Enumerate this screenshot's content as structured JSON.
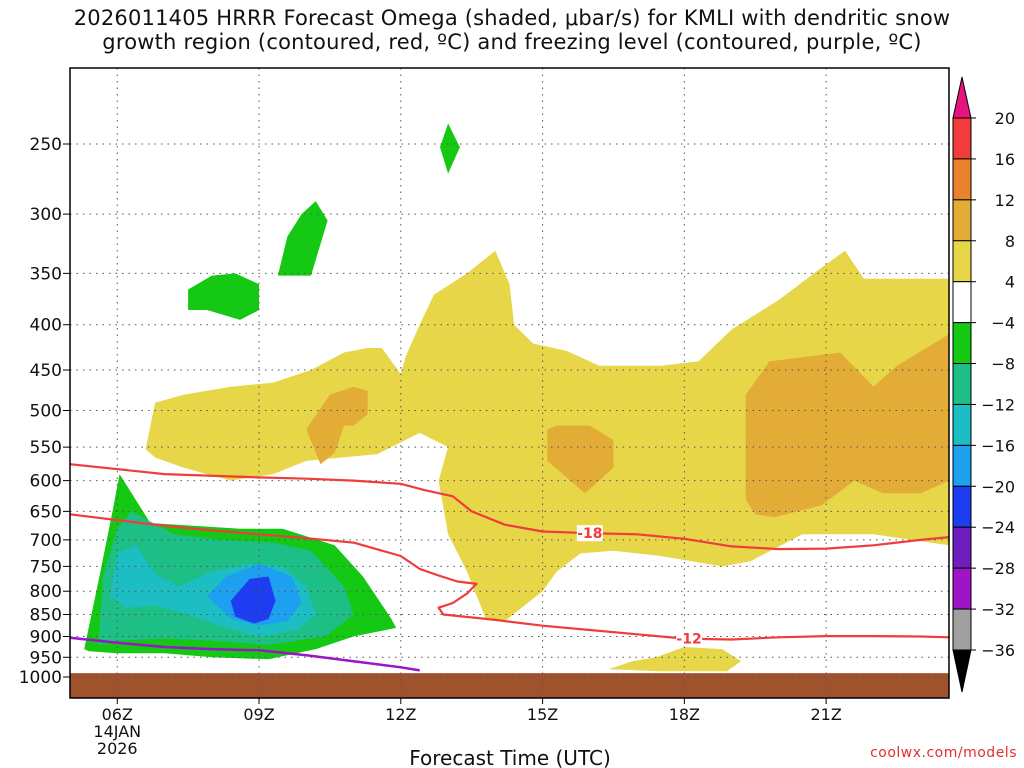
{
  "title": {
    "line1": "2026011405 HRRR Forecast Omega (shaded, μbar/s) for KMLI with dendritic snow",
    "line2": "growth region (contoured, red, ºC) and freezing level (contoured, purple, ºC)"
  },
  "chart_data": {
    "type": "time-height cross section",
    "title": "2026011405 HRRR Forecast Omega (shaded, μbar/s) for KMLI with dendritic snow growth region (contoured, red, ºC) and freezing level (contoured, purple, ºC)",
    "xlabel": "Forecast Time (UTC)",
    "ylabel": "",
    "x_range_hours": [
      5.0,
      23.6
    ],
    "x_ticks": [
      {
        "hour": 6,
        "label": "06Z"
      },
      {
        "hour": 9,
        "label": "09Z"
      },
      {
        "hour": 12,
        "label": "12Z"
      },
      {
        "hour": 15,
        "label": "15Z"
      },
      {
        "hour": 18,
        "label": "18Z"
      },
      {
        "hour": 21,
        "label": "21Z"
      }
    ],
    "date_label": [
      "14JAN",
      "2026"
    ],
    "y_scale": "log pressure (hPa)",
    "y_range_hPa": [
      1020,
      195
    ],
    "y_ticks": [
      1000,
      950,
      900,
      850,
      800,
      750,
      700,
      650,
      600,
      550,
      500,
      450,
      400,
      350,
      300,
      250
    ],
    "colorbar": {
      "boundaries": [
        20,
        16,
        12,
        8,
        4,
        -4,
        -8,
        -12,
        -16,
        -20,
        -24,
        -28,
        -32,
        -36
      ],
      "colors": [
        "#f23b3b",
        "#e8822b",
        "#e2ac37",
        "#e6d648",
        "#ffffff",
        "#14c814",
        "#1ebe87",
        "#1cbec3",
        "#1ea0f0",
        "#1e3cf0",
        "#6e1ebe",
        "#a014c8",
        "#a0a0a0"
      ],
      "over_color": "#e6147f",
      "under_color": "#000000"
    },
    "omega_regions": [
      {
        "level": "-4 to -8",
        "color": "#14c814",
        "points": [
          [
            5.3,
            930
          ],
          [
            5.6,
            780
          ],
          [
            5.9,
            650
          ],
          [
            6.05,
            590
          ],
          [
            6.7,
            670
          ],
          [
            8.6,
            680
          ],
          [
            9.5,
            680
          ],
          [
            10.6,
            710
          ],
          [
            11.2,
            770
          ],
          [
            11.8,
            860
          ],
          [
            11.9,
            880
          ],
          [
            11.0,
            900
          ],
          [
            10.2,
            930
          ],
          [
            9.2,
            955
          ],
          [
            8.0,
            950
          ],
          [
            7.0,
            940
          ],
          [
            6.0,
            940
          ],
          [
            5.4,
            935
          ]
        ]
      },
      {
        "level": "-8 to -12",
        "color": "#1ebe87",
        "points": [
          [
            5.6,
            920
          ],
          [
            5.7,
            770
          ],
          [
            6.0,
            680
          ],
          [
            6.3,
            650
          ],
          [
            7.2,
            690
          ],
          [
            8.2,
            700
          ],
          [
            9.3,
            705
          ],
          [
            10.1,
            720
          ],
          [
            10.8,
            790
          ],
          [
            11.0,
            850
          ],
          [
            10.4,
            900
          ],
          [
            9.2,
            920
          ],
          [
            8.0,
            910
          ],
          [
            7.0,
            905
          ],
          [
            6.0,
            910
          ]
        ]
      },
      {
        "level": "-12 to -16",
        "color": "#1cbec3",
        "points": [
          [
            5.85,
            810
          ],
          [
            6.0,
            725
          ],
          [
            6.4,
            710
          ],
          [
            6.8,
            765
          ],
          [
            7.3,
            790
          ],
          [
            8.0,
            760
          ],
          [
            8.8,
            745
          ],
          [
            9.5,
            750
          ],
          [
            10.0,
            790
          ],
          [
            10.2,
            850
          ],
          [
            9.8,
            885
          ],
          [
            9.0,
            900
          ],
          [
            8.2,
            875
          ],
          [
            7.5,
            850
          ],
          [
            6.8,
            830
          ],
          [
            6.2,
            835
          ]
        ]
      },
      {
        "level": "-16 to -20",
        "color": "#1ea0f0",
        "points": [
          [
            7.9,
            810
          ],
          [
            8.3,
            770
          ],
          [
            9.0,
            745
          ],
          [
            9.7,
            770
          ],
          [
            9.9,
            825
          ],
          [
            9.6,
            865
          ],
          [
            9.0,
            875
          ],
          [
            8.4,
            860
          ]
        ]
      },
      {
        "level": "-20 to -24",
        "color": "#1e3cf0",
        "points": [
          [
            8.4,
            820
          ],
          [
            8.8,
            775
          ],
          [
            9.2,
            770
          ],
          [
            9.35,
            820
          ],
          [
            9.2,
            860
          ],
          [
            8.9,
            870
          ],
          [
            8.5,
            855
          ]
        ]
      },
      {
        "level": "-4 to -8",
        "color": "#14c814",
        "points": [
          [
            7.5,
            365
          ],
          [
            8.0,
            352
          ],
          [
            8.5,
            350
          ],
          [
            9.0,
            360
          ],
          [
            9.0,
            385
          ],
          [
            8.6,
            395
          ],
          [
            7.9,
            385
          ],
          [
            7.5,
            385
          ]
        ]
      },
      {
        "level": "-4 to -8",
        "color": "#14c814",
        "points": [
          [
            9.4,
            352
          ],
          [
            9.6,
            318
          ],
          [
            9.9,
            300
          ],
          [
            10.2,
            290
          ],
          [
            10.45,
            305
          ],
          [
            10.1,
            352
          ]
        ]
      },
      {
        "level": "-4 to -8",
        "color": "#14c814",
        "points": [
          [
            12.83,
            252
          ],
          [
            13.0,
            237
          ],
          [
            13.25,
            252
          ],
          [
            13.0,
            270
          ]
        ]
      },
      {
        "level": "4 to 8",
        "color": "#e6d648",
        "points": [
          [
            6.6,
            553
          ],
          [
            6.8,
            490
          ],
          [
            7.4,
            480
          ],
          [
            8.4,
            470
          ],
          [
            9.3,
            465
          ],
          [
            10.1,
            450
          ],
          [
            10.8,
            430
          ],
          [
            11.3,
            425
          ],
          [
            11.6,
            425
          ],
          [
            12.0,
            455
          ],
          [
            12.1,
            435
          ],
          [
            12.4,
            400
          ],
          [
            12.7,
            370
          ],
          [
            13.4,
            350
          ],
          [
            14.0,
            330
          ],
          [
            14.3,
            360
          ],
          [
            14.4,
            400
          ],
          [
            14.8,
            420
          ],
          [
            15.5,
            428
          ],
          [
            16.2,
            445
          ],
          [
            16.5,
            445
          ],
          [
            17.0,
            445
          ],
          [
            17.5,
            445
          ],
          [
            18.3,
            440
          ],
          [
            19.0,
            405
          ],
          [
            20.0,
            375
          ],
          [
            20.9,
            345
          ],
          [
            21.4,
            330
          ],
          [
            21.8,
            355
          ],
          [
            22.5,
            355
          ],
          [
            23.6,
            355
          ],
          [
            23.6,
            710
          ],
          [
            22.0,
            690
          ],
          [
            20.5,
            690
          ],
          [
            19.4,
            740
          ],
          [
            18.8,
            750
          ],
          [
            17.5,
            730
          ],
          [
            16.5,
            720
          ],
          [
            15.8,
            725
          ],
          [
            15.3,
            760
          ],
          [
            15.0,
            800
          ],
          [
            14.2,
            865
          ],
          [
            13.8,
            860
          ],
          [
            13.4,
            760
          ],
          [
            13.0,
            690
          ],
          [
            12.8,
            600
          ],
          [
            13.0,
            550
          ],
          [
            12.4,
            530
          ],
          [
            11.5,
            560
          ],
          [
            10.0,
            570
          ],
          [
            9.3,
            590
          ],
          [
            8.4,
            600
          ],
          [
            7.4,
            580
          ],
          [
            6.8,
            565
          ]
        ]
      },
      {
        "level": "8 to 12",
        "color": "#e2ac37",
        "points": [
          [
            10.0,
            525
          ],
          [
            10.5,
            480
          ],
          [
            11.0,
            470
          ],
          [
            11.3,
            475
          ],
          [
            11.3,
            505
          ],
          [
            11.0,
            520
          ],
          [
            10.8,
            520
          ],
          [
            10.6,
            558
          ],
          [
            10.3,
            575
          ]
        ]
      },
      {
        "level": "8 to 12",
        "color": "#e2ac37",
        "points": [
          [
            15.1,
            525
          ],
          [
            15.3,
            520
          ],
          [
            16.0,
            520
          ],
          [
            16.5,
            540
          ],
          [
            16.5,
            580
          ],
          [
            15.9,
            620
          ],
          [
            15.1,
            570
          ]
        ]
      },
      {
        "level": "8 to 12",
        "color": "#e2ac37",
        "points": [
          [
            19.3,
            480
          ],
          [
            19.8,
            440
          ],
          [
            21.3,
            430
          ],
          [
            22.0,
            470
          ],
          [
            22.5,
            445
          ],
          [
            23.6,
            410
          ],
          [
            23.6,
            600
          ],
          [
            23.0,
            620
          ],
          [
            22.2,
            620
          ],
          [
            21.6,
            600
          ],
          [
            20.9,
            640
          ],
          [
            19.9,
            660
          ],
          [
            19.5,
            655
          ],
          [
            19.3,
            630
          ]
        ]
      },
      {
        "level": "4 to 8",
        "color": "#e6d648",
        "points": [
          [
            16.4,
            980
          ],
          [
            16.9,
            960
          ],
          [
            17.4,
            950
          ],
          [
            18.0,
            925
          ],
          [
            18.8,
            930
          ],
          [
            19.2,
            960
          ],
          [
            18.9,
            985
          ],
          [
            17.5,
            985
          ]
        ]
      }
    ],
    "red_contours": [
      {
        "label": "-18",
        "label_hour": 16.0,
        "points": [
          [
            5.0,
            575
          ],
          [
            7.0,
            590
          ],
          [
            9.0,
            595
          ],
          [
            10.0,
            597
          ],
          [
            11.0,
            600
          ],
          [
            12.0,
            605
          ],
          [
            12.5,
            615
          ],
          [
            13.1,
            625
          ],
          [
            13.5,
            650
          ],
          [
            14.2,
            673
          ],
          [
            15.0,
            685
          ],
          [
            16.0,
            688
          ],
          [
            17.0,
            690
          ],
          [
            18.0,
            698
          ],
          [
            19.0,
            712
          ],
          [
            20.0,
            717
          ],
          [
            21.0,
            716
          ],
          [
            22.0,
            710
          ],
          [
            23.0,
            700
          ],
          [
            23.6,
            695
          ]
        ]
      },
      {
        "label": "",
        "label_hour": null,
        "points": [
          [
            5.0,
            655
          ],
          [
            6.0,
            665
          ],
          [
            7.0,
            675
          ],
          [
            8.0,
            683
          ],
          [
            9.0,
            690
          ],
          [
            10.0,
            697
          ],
          [
            11.0,
            705
          ],
          [
            12.0,
            730
          ],
          [
            12.4,
            755
          ],
          [
            12.8,
            768
          ],
          [
            13.2,
            780
          ],
          [
            13.6,
            785
          ],
          [
            13.4,
            805
          ],
          [
            13.1,
            825
          ],
          [
            12.8,
            835
          ],
          [
            12.9,
            850
          ],
          [
            14.0,
            862
          ],
          [
            15.0,
            875
          ],
          [
            16.0,
            885
          ],
          [
            17.0,
            895
          ],
          [
            18.0,
            905
          ],
          [
            19.0,
            907
          ],
          [
            20.0,
            902
          ],
          [
            21.0,
            899
          ],
          [
            22.0,
            899
          ],
          [
            23.0,
            900
          ],
          [
            23.6,
            902
          ]
        ]
      },
      {
        "label": "-12",
        "label_hour": 18.1,
        "points": []
      }
    ],
    "purple_contour": {
      "points": [
        [
          5.0,
          903
        ],
        [
          6.0,
          915
        ],
        [
          7.0,
          925
        ],
        [
          8.0,
          930
        ],
        [
          9.0,
          933
        ],
        [
          10.0,
          945
        ],
        [
          11.0,
          960
        ],
        [
          12.0,
          975
        ],
        [
          12.4,
          983
        ]
      ]
    },
    "ground_top_hPa": 990,
    "watermark": "coolwx.com/models"
  }
}
